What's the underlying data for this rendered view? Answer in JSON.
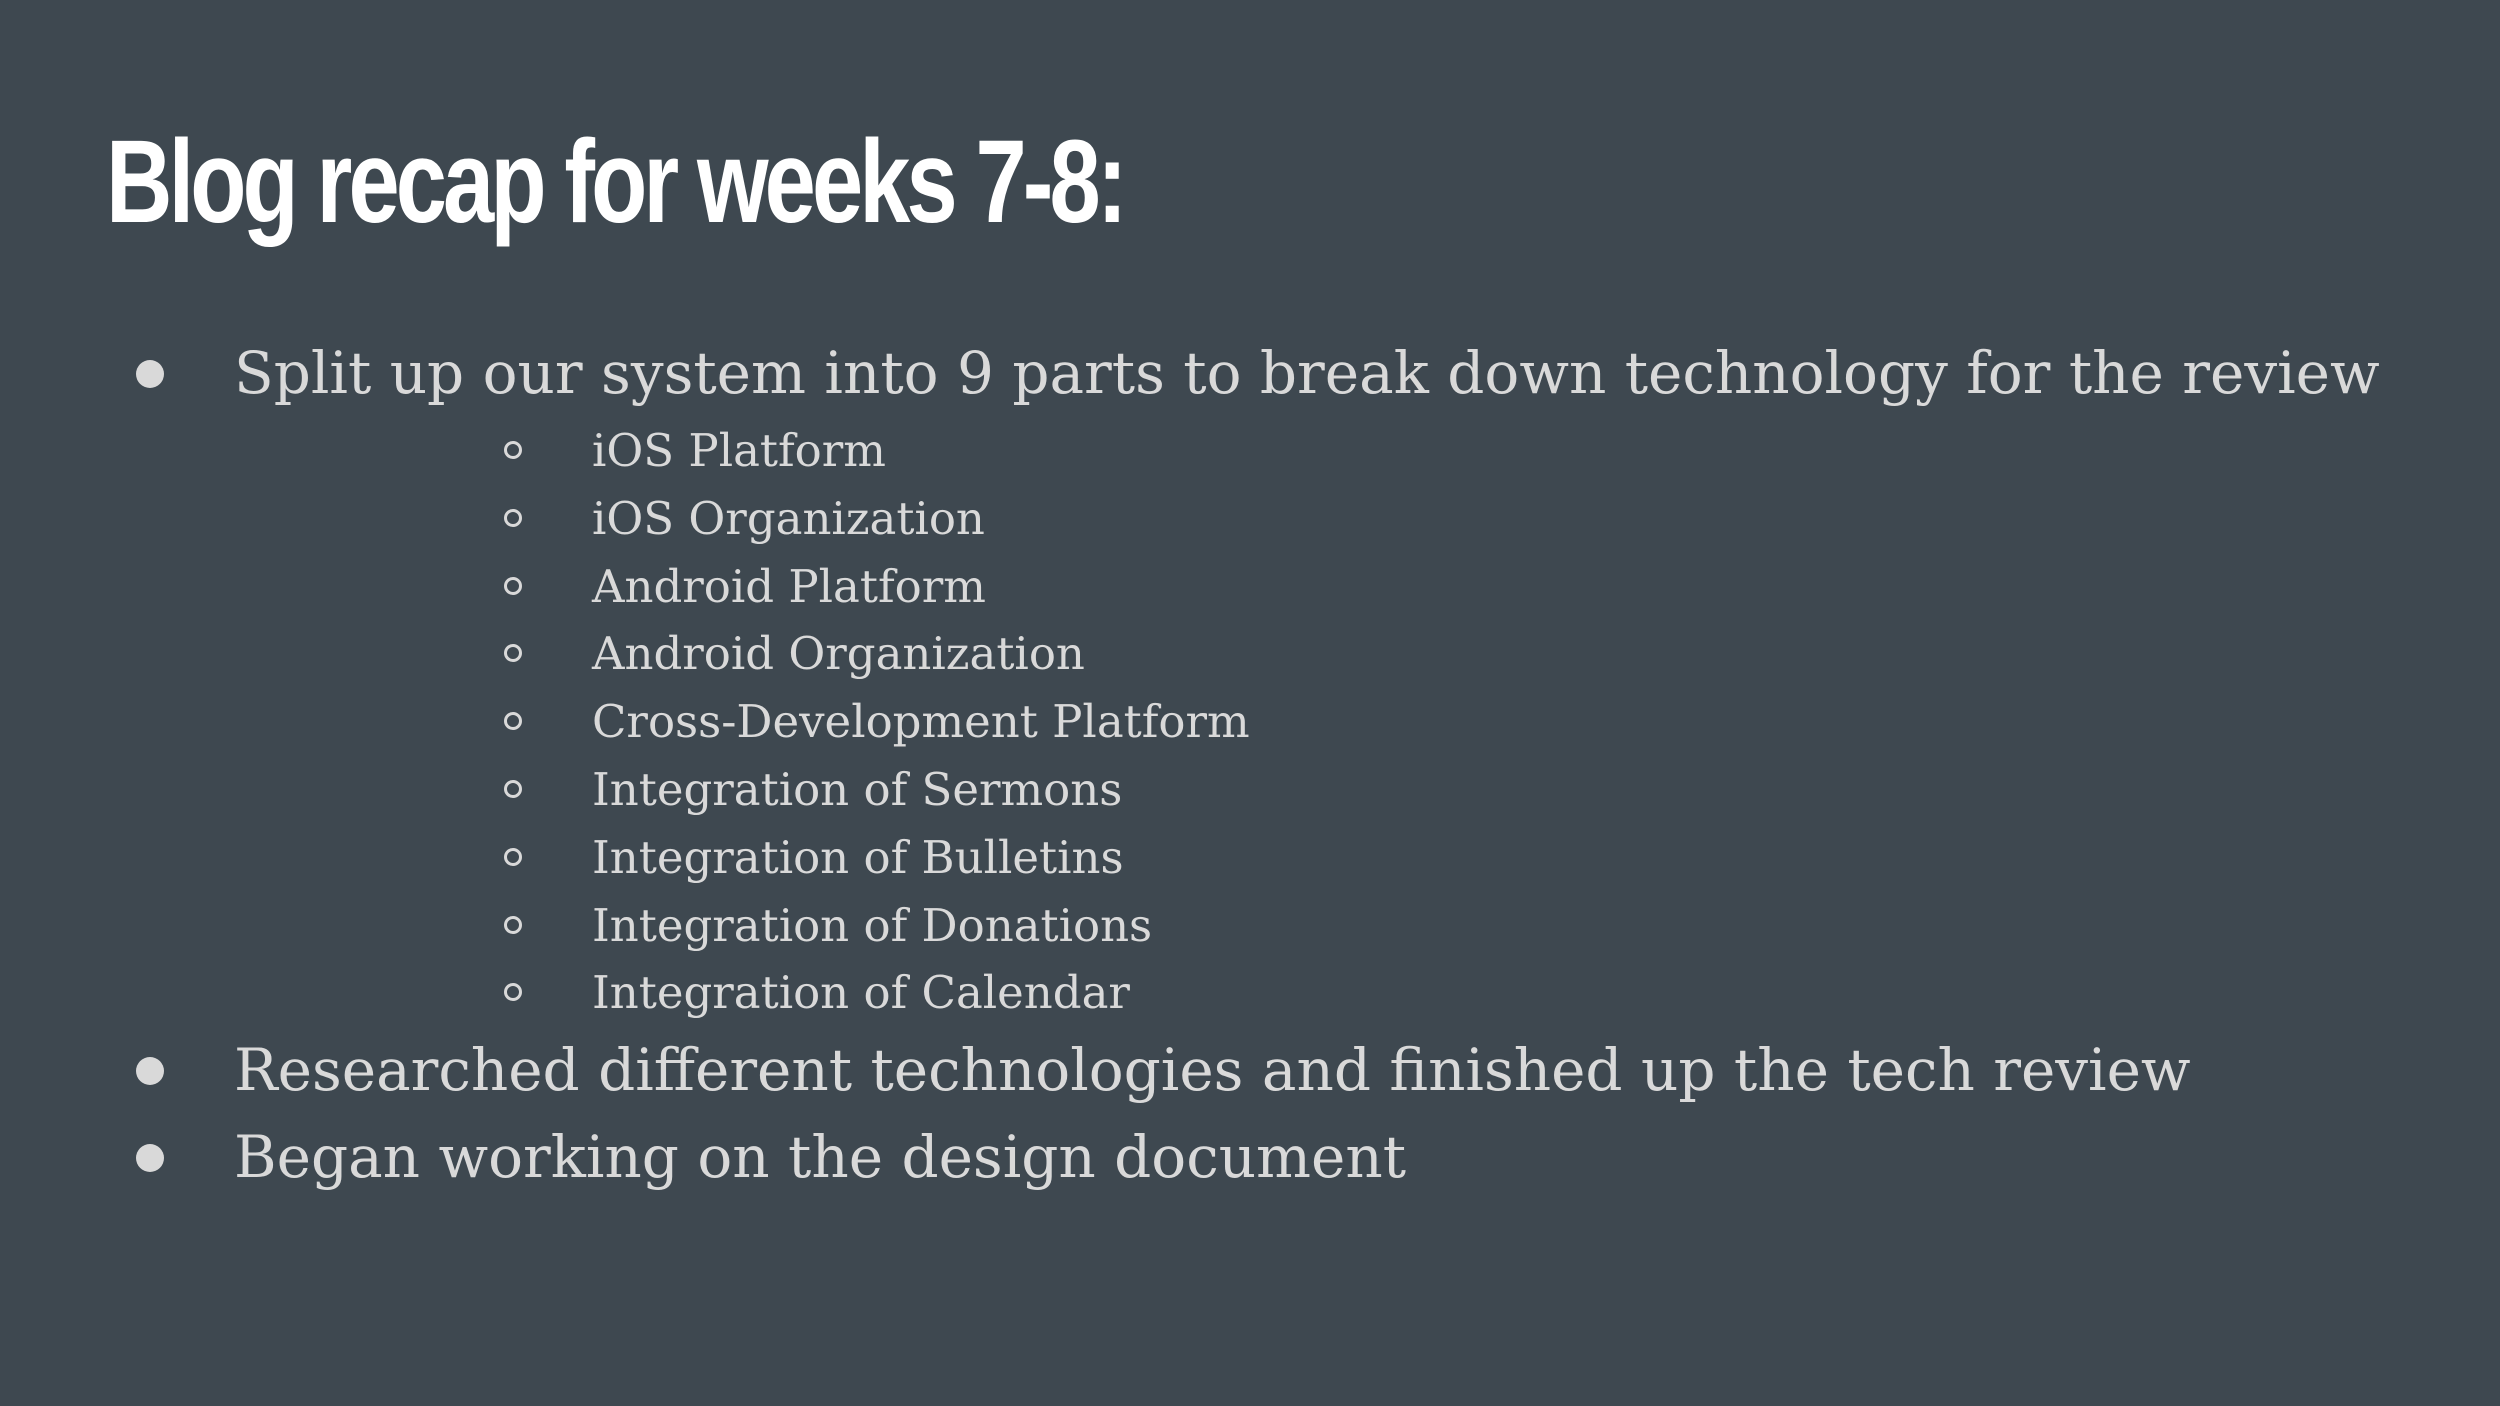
{
  "slide": {
    "title": "Blog recap for weeks 7-8:",
    "bullets": [
      {
        "text": "Split up our system into 9 parts to break down technology for the review",
        "sub": [
          "iOS Platform",
          "iOS Organization",
          "Android Platform",
          "Android Organization",
          "Cross-Development Platform",
          "Integration of Sermons",
          "Integration of Bulletins",
          "Integration of Donations",
          "Integration of Calendar"
        ]
      },
      {
        "text": "Researched different technologies and finished up the tech review",
        "sub": []
      },
      {
        "text": "Began working on the design document",
        "sub": []
      }
    ]
  },
  "colors": {
    "background": "#3e4850",
    "title": "#ffffff",
    "body_text": "#d9d9d9"
  }
}
